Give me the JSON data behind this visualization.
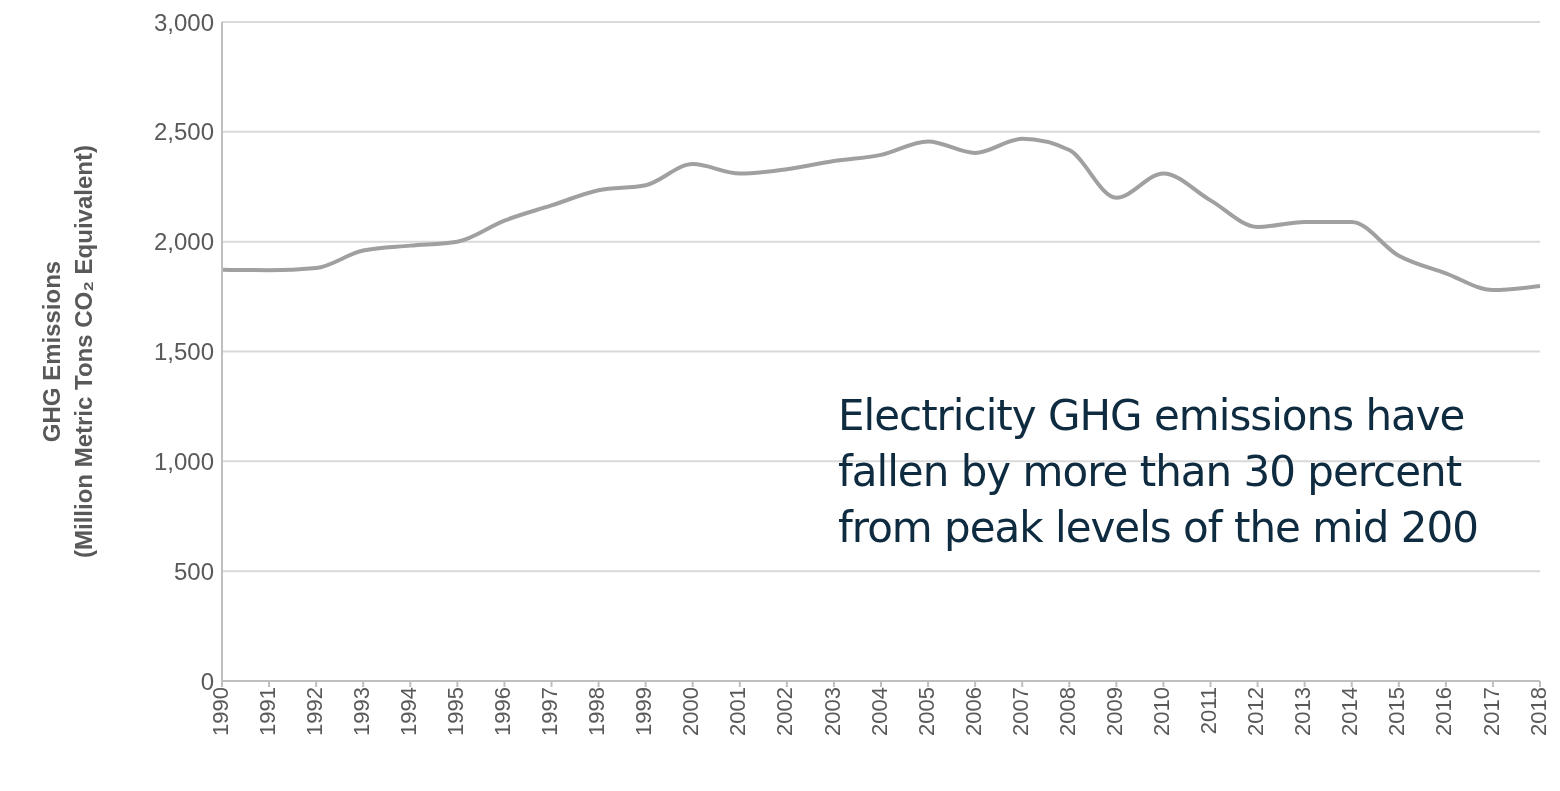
{
  "chart_data": {
    "type": "line",
    "ylabel": "GHG Emissions\n(Million Metric Tons CO₂ Equivalent)",
    "categories": [
      "1990",
      "1991",
      "1992",
      "1993",
      "1994",
      "1995",
      "1996",
      "1997",
      "1998",
      "1999",
      "2000",
      "2001",
      "2002",
      "2003",
      "2004",
      "2005",
      "2006",
      "2007",
      "2008",
      "2009",
      "2010",
      "2011",
      "2012",
      "2013",
      "2014",
      "2015",
      "2016",
      "2017",
      "2018"
    ],
    "series": [
      {
        "color": "#a0a0a0",
        "values": [
          1872,
          1870,
          1880,
          1960,
          1982,
          2000,
          2096,
          2165,
          2234,
          2257,
          2353,
          2310,
          2330,
          2367,
          2395,
          2456,
          2404,
          2468,
          2417,
          2200,
          2310,
          2188,
          2067,
          2090,
          2090,
          1936,
          1856,
          1780,
          1798
        ]
      }
    ],
    "ylim": [
      0,
      3000
    ],
    "yticks": [
      {
        "value": 0,
        "label": "0"
      },
      {
        "value": 500,
        "label": "500"
      },
      {
        "value": 1000,
        "label": "1,000"
      },
      {
        "value": 1500,
        "label": "1,500"
      },
      {
        "value": 2000,
        "label": "2,000"
      },
      {
        "value": 2500,
        "label": "2,500"
      },
      {
        "value": 3000,
        "label": "3,000"
      }
    ],
    "grid": "y",
    "marker": "none",
    "annotations": [
      "Electricity GHG emissions have\nfallen by more than 30 percent\nfrom peak levels of the mid 200"
    ]
  }
}
